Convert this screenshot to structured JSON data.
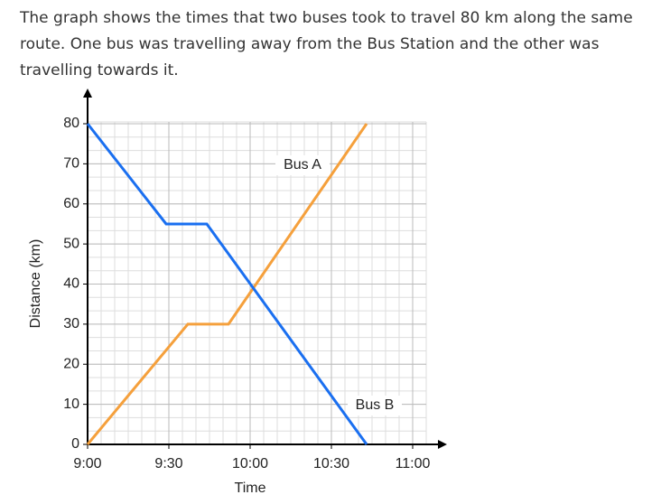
{
  "question": "The graph shows the times that two buses took to travel 80 km along the same route. One bus was travelling away from the Bus Station and the other was travelling towards it.",
  "chart_data": {
    "type": "line",
    "xlabel": "Time",
    "ylabel": "Distance (km)",
    "xlim": [
      0,
      125
    ],
    "ylim": [
      0,
      80
    ],
    "xticks": [
      {
        "value": 0,
        "label": "9:00"
      },
      {
        "value": 30,
        "label": "9:30"
      },
      {
        "value": 60,
        "label": "10:00"
      },
      {
        "value": 90,
        "label": "10:30"
      },
      {
        "value": 120,
        "label": "11:00"
      }
    ],
    "yticks": [
      0,
      10,
      20,
      30,
      40,
      50,
      60,
      70,
      80
    ],
    "grid": true,
    "series": [
      {
        "name": "Bus A",
        "color": "#f5a03c",
        "x": [
          0,
          37,
          52,
          103
        ],
        "values": [
          0,
          30,
          30,
          80
        ]
      },
      {
        "name": "Bus B",
        "color": "#1a6ff0",
        "x": [
          0,
          29,
          44,
          103
        ],
        "values": [
          80,
          55,
          55,
          0
        ]
      }
    ]
  }
}
